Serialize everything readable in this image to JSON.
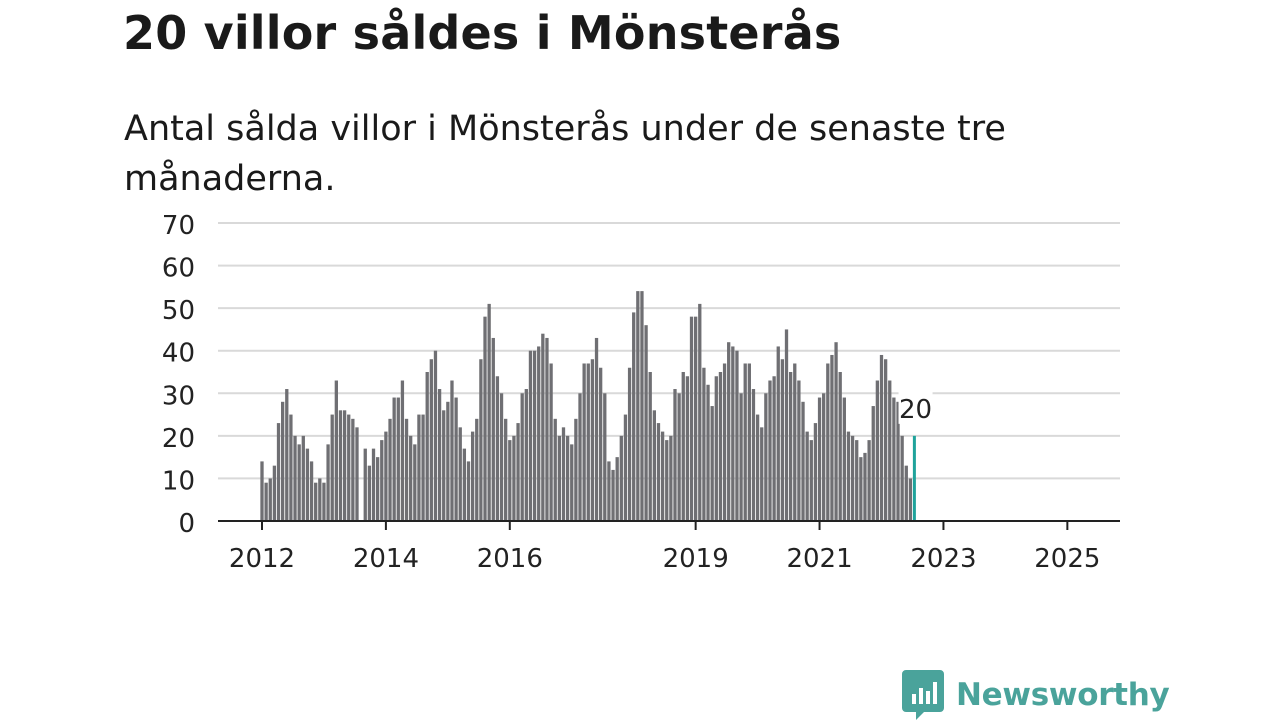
{
  "title": "20 villor såldes i Mönsterås",
  "subtitle": "Antal sålda villor i Mönsterås under de senaste tre månaderna.",
  "brand": {
    "name": "Newsworthy",
    "color": "#4aa39b",
    "icon": "newsworthy-chart-bubble-icon"
  },
  "colors": {
    "bar": "#6f6f73",
    "highlight": "#1fa39b",
    "grid": "#d9d9d9",
    "axis": "#222222"
  },
  "chart_data": {
    "type": "bar",
    "start": "2012-01",
    "ylim": [
      0,
      70
    ],
    "y_ticks": [
      "0",
      "10",
      "20",
      "30",
      "40",
      "50",
      "60",
      "70"
    ],
    "x_tick_labels": [
      {
        "label": "2012",
        "month_index": 0
      },
      {
        "label": "2014",
        "month_index": 30
      },
      {
        "label": "2016",
        "month_index": 60
      },
      {
        "label": "2019",
        "month_index": 105
      },
      {
        "label": "2021",
        "month_index": 135
      },
      {
        "label": "2023",
        "month_index": 165
      },
      {
        "label": "2025",
        "month_index": 195
      }
    ],
    "values": [
      14,
      9,
      10,
      13,
      23,
      28,
      31,
      25,
      20,
      18,
      20,
      17,
      14,
      9,
      10,
      9,
      18,
      25,
      33,
      26,
      26,
      25,
      24,
      22,
      0,
      17,
      13,
      17,
      15,
      19,
      21,
      24,
      29,
      29,
      33,
      24,
      20,
      18,
      25,
      25,
      35,
      38,
      40,
      31,
      26,
      28,
      33,
      29,
      22,
      17,
      14,
      21,
      24,
      38,
      48,
      51,
      43,
      34,
      30,
      24,
      19,
      20,
      23,
      30,
      31,
      40,
      40,
      41,
      44,
      43,
      37,
      24,
      20,
      22,
      20,
      18,
      24,
      30,
      37,
      37,
      38,
      43,
      36,
      30,
      14,
      12,
      15,
      20,
      25,
      36,
      49,
      54,
      54,
      46,
      35,
      26,
      23,
      21,
      19,
      20,
      31,
      30,
      35,
      34,
      48,
      48,
      51,
      36,
      32,
      27,
      34,
      35,
      37,
      42,
      41,
      40,
      30,
      37,
      37,
      31,
      25,
      22,
      30,
      33,
      34,
      41,
      38,
      45,
      35,
      37,
      33,
      28,
      21,
      19,
      23,
      29,
      30,
      37,
      39,
      42,
      35,
      29,
      21,
      20,
      19,
      15,
      16,
      19,
      27,
      33,
      39,
      38,
      33,
      29,
      28,
      20,
      13,
      10,
      20
    ],
    "highlight": {
      "index": 158,
      "value": 20,
      "label": "20"
    }
  }
}
